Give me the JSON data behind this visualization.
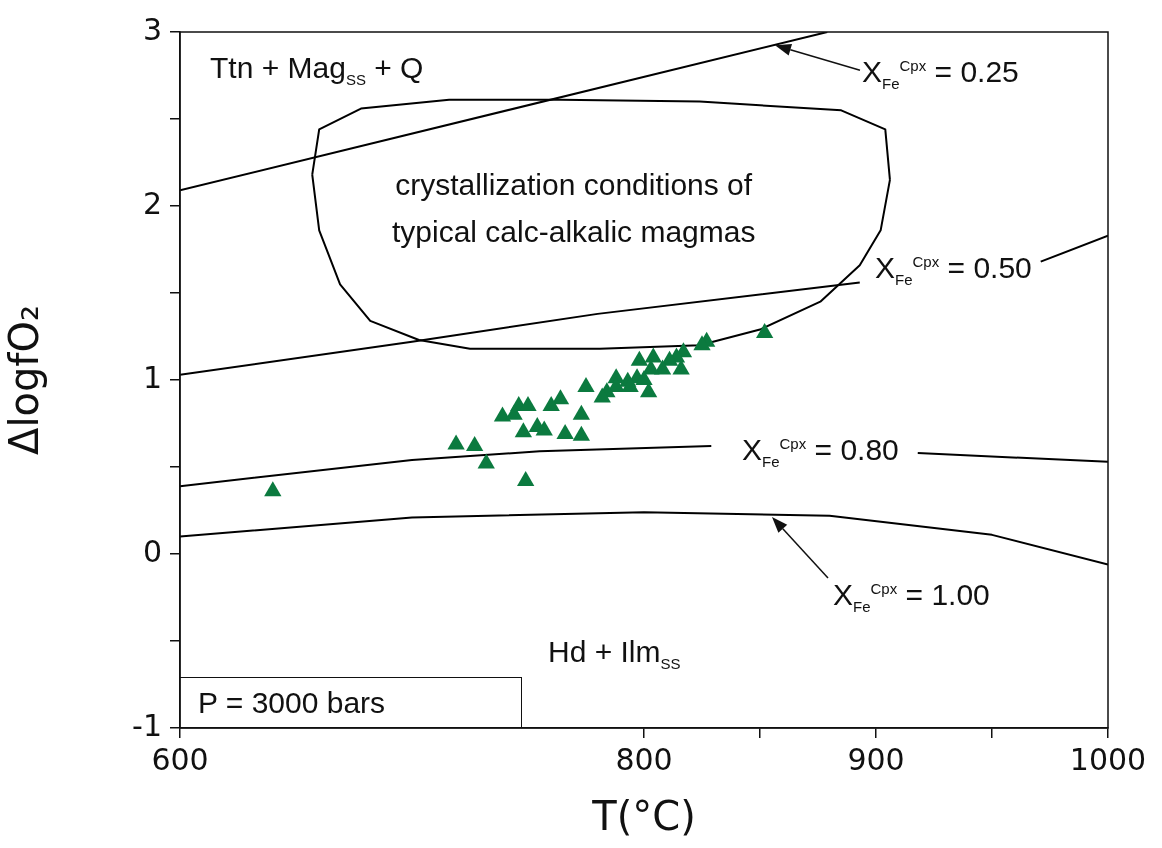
{
  "chart_data": {
    "type": "scatter",
    "xlabel": "T(°C)",
    "ylabel": "ΔlogfO₂",
    "xlim": [
      600,
      1000
    ],
    "ylim": [
      -1,
      3
    ],
    "xticks": [
      600,
      {
        "value": 850,
        "label": null
      },
      800,
      900,
      {
        "value": 950,
        "label": null
      },
      1000
    ],
    "yticks": [
      -1,
      {
        "value": -0.5,
        "label": null
      },
      0,
      {
        "value": 0.5,
        "label": null
      },
      1,
      {
        "value": 1.5,
        "label": null
      },
      2,
      {
        "value": 2.5,
        "label": null
      },
      3
    ],
    "grid": false,
    "legend": false,
    "series": [
      {
        "marker": "triangle",
        "color": "#0b7a3f",
        "x": [
          640,
          719,
          727,
          732,
          749,
          739,
          746,
          750,
          744,
          748,
          754,
          757,
          852,
          827,
          825,
          817,
          814,
          816,
          811,
          804,
          798,
          808,
          803,
          802,
          797,
          793,
          788,
          788,
          784,
          782,
          775,
          773,
          773,
          764,
          760,
          766,
          794,
          800
        ],
        "values": [
          0.36,
          0.63,
          0.62,
          0.52,
          0.42,
          0.79,
          0.85,
          0.85,
          0.8,
          0.7,
          0.73,
          0.71,
          1.27,
          1.22,
          1.2,
          1.16,
          1.13,
          1.06,
          1.11,
          1.13,
          1.11,
          1.06,
          1.06,
          0.93,
          1.01,
          0.99,
          1.01,
          0.96,
          0.93,
          0.9,
          0.96,
          0.8,
          0.68,
          0.89,
          0.85,
          0.69,
          0.96,
          1.0
        ]
      },
      {
        "type": "line",
        "marker": "none",
        "color": "#000000",
        "x": [
          600,
          879
        ],
        "values": [
          2.09,
          3.0
        ]
      },
      {
        "type": "line",
        "marker": "none",
        "color": "#000000",
        "x": [
          600,
          700,
          780,
          893,
          932,
          971,
          1000
        ],
        "values": [
          1.03,
          1.22,
          1.38,
          1.56,
          null,
          1.68,
          1.83
        ]
      },
      {
        "type": "line",
        "marker": "none",
        "color": "#000000",
        "x": [
          600,
          700,
          755,
          829,
          873,
          918,
          1000
        ],
        "values": [
          0.39,
          0.54,
          0.59,
          0.62,
          null,
          0.58,
          0.53
        ]
      },
      {
        "type": "line",
        "marker": "none",
        "color": "#000000",
        "x": [
          600,
          700,
          800,
          880,
          950,
          1000
        ],
        "values": [
          0.1,
          0.21,
          0.24,
          0.22,
          0.11,
          -0.06
        ]
      },
      {
        "type": "line",
        "marker": "none",
        "color": "#000000",
        "x": [
          657,
          660,
          678,
          716,
          764,
          824,
          885,
          904,
          906,
          null,
          657,
          660,
          669,
          682,
          703,
          725,
          781,
          824,
          850,
          876,
          893,
          902,
          906
        ],
        "values": [
          2.18,
          2.44,
          2.56,
          2.61,
          2.61,
          2.6,
          2.55,
          2.44,
          2.15,
          null,
          2.18,
          1.86,
          1.55,
          1.34,
          1.23,
          1.18,
          1.18,
          1.2,
          1.29,
          1.45,
          1.66,
          1.86,
          2.15
        ]
      }
    ],
    "annotations": [
      "Ttn + Mag$_{SS}$ + Q",
      "crystallization conditions of\ntypical calc-alkalic magmas",
      "X$_{Fe}$$^{Cpx}$ = 0.25",
      "X$_{Fe}$$^{Cpx}$ = 0.50",
      "X$_{Fe}$$^{Cpx}$ = 0.80",
      "X$_{Fe}$$^{Cpx}$ = 1.00",
      "Hd + Ilm$_{SS}$",
      "P = 3000 bars"
    ]
  }
}
